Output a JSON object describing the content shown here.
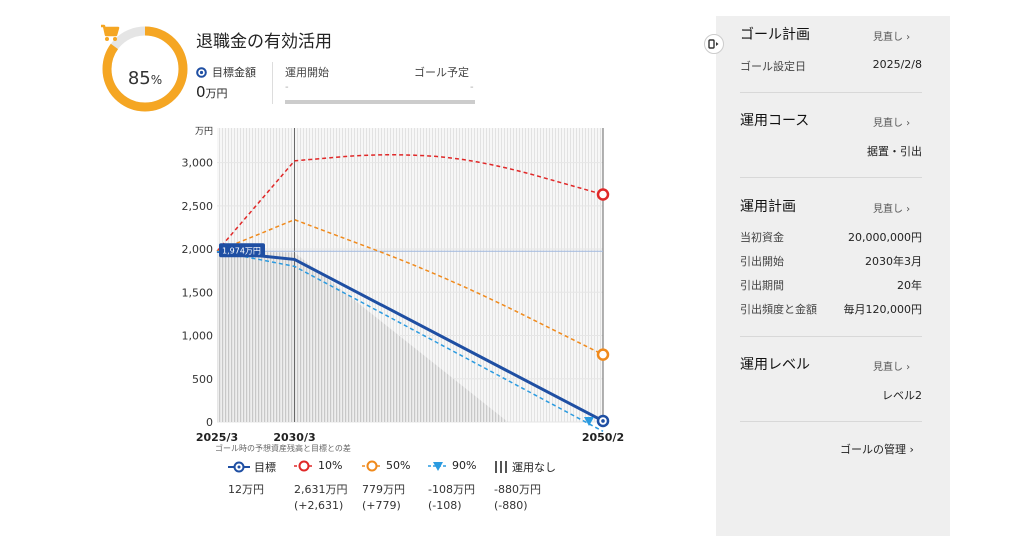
{
  "goal": {
    "title": "退職金の有効活用",
    "progress_pct": 85,
    "progress_text": "85",
    "pct_sign": "%",
    "target_label": "目標金額",
    "target_value": "0",
    "target_unit": "万円",
    "op_start_label": "運用開始",
    "goal_plan_label": "ゴール予定",
    "op_start_value": "-",
    "goal_plan_value": "-"
  },
  "chart_data": {
    "type": "line",
    "y_unit": "万円",
    "ylim": [
      0,
      3400
    ],
    "yticks": [
      "3,000",
      "2,500",
      "2,000",
      "1,500",
      "1,000",
      "500",
      "0"
    ],
    "ytick_values": [
      3000,
      2500,
      2000,
      1500,
      1000,
      500,
      0
    ],
    "x_labels": [
      "2025/3",
      "2030/3",
      "2050/2"
    ],
    "x": [
      2025.17,
      2030.17,
      2050.08
    ],
    "marker_label": "1,974万円",
    "marker_value": 1974,
    "series": [
      {
        "name": "目標",
        "color": "#1f4fa3",
        "points": [
          [
            2025.17,
            1974
          ],
          [
            2030.17,
            1880
          ],
          [
            2050.08,
            12
          ]
        ]
      },
      {
        "name": "10%",
        "color": "#e02828",
        "points": [
          [
            2025.17,
            1974
          ],
          [
            2030.17,
            3020
          ],
          [
            2036,
            3110
          ],
          [
            2042,
            3040
          ],
          [
            2050.08,
            2631
          ]
        ]
      },
      {
        "name": "50%",
        "color": "#f08a1c",
        "points": [
          [
            2025.17,
            1974
          ],
          [
            2030.17,
            2340
          ],
          [
            2040,
            1680
          ],
          [
            2050.08,
            779
          ]
        ]
      },
      {
        "name": "90%",
        "color": "#2b9be0",
        "points": [
          [
            2025.17,
            1974
          ],
          [
            2030.17,
            1800
          ],
          [
            2050.08,
            -108
          ]
        ]
      }
    ],
    "no_operation": {
      "name": "運用なし",
      "end_value": -880
    }
  },
  "legend": {
    "caption": "ゴール時の予想資産残高と目標との差",
    "items": [
      {
        "label": "目標",
        "value": "12万円",
        "diff": ""
      },
      {
        "label": "10%",
        "value": "2,631万円",
        "diff": "(+2,631)"
      },
      {
        "label": "50%",
        "value": "779万円",
        "diff": "(+779)"
      },
      {
        "label": "90%",
        "value": "-108万円",
        "diff": "(-108)"
      },
      {
        "label": "運用なし",
        "value": "-880万円",
        "diff": "(-880)"
      }
    ]
  },
  "sidebar": {
    "goal_plan": {
      "title": "ゴール計画",
      "link": "見直し ›",
      "row_label": "ゴール設定日",
      "row_value": "2025/2/8"
    },
    "course": {
      "title": "運用コース",
      "link": "見直し ›",
      "value": "据置・引出"
    },
    "plan": {
      "title": "運用計画",
      "link": "見直し ›",
      "rows": [
        {
          "label": "当初資金",
          "value": "20,000,000円"
        },
        {
          "label": "引出開始",
          "value": "2030年3月"
        },
        {
          "label": "引出期間",
          "value": "20年"
        },
        {
          "label": "引出頻度と金額",
          "value": "毎月120,000円"
        }
      ]
    },
    "level": {
      "title": "運用レベル",
      "link": "見直し ›",
      "value": "レベル2"
    },
    "manage_link": "ゴールの管理 ›"
  },
  "colors": {
    "ring": "#f5a623",
    "ring_bg": "#e5e5e5",
    "target_blue": "#1f4fa3",
    "red": "#e02828",
    "orange": "#f08a1c",
    "lightblue": "#2b9be0"
  }
}
